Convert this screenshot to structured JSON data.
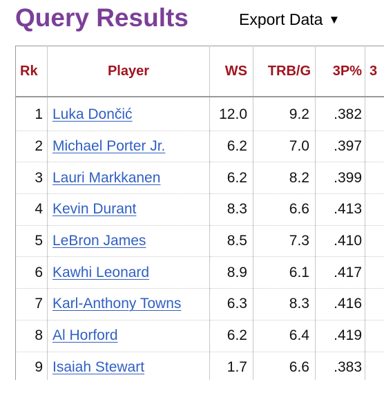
{
  "header": {
    "title": "Query Results",
    "export_label": "Export Data",
    "export_caret": "▼"
  },
  "table": {
    "columns": [
      "Rk",
      "Player",
      "WS",
      "TRB/G",
      "3P%",
      "3"
    ],
    "rows": [
      {
        "rk": "1",
        "player": "Luka Dončić",
        "ws": "12.0",
        "trb": "9.2",
        "p3": ".382"
      },
      {
        "rk": "2",
        "player": "Michael Porter Jr.",
        "ws": "6.2",
        "trb": "7.0",
        "p3": ".397"
      },
      {
        "rk": "3",
        "player": "Lauri Markkanen",
        "ws": "6.2",
        "trb": "8.2",
        "p3": ".399"
      },
      {
        "rk": "4",
        "player": "Kevin Durant",
        "ws": "8.3",
        "trb": "6.6",
        "p3": ".413"
      },
      {
        "rk": "5",
        "player": "LeBron James",
        "ws": "8.5",
        "trb": "7.3",
        "p3": ".410"
      },
      {
        "rk": "6",
        "player": "Kawhi Leonard",
        "ws": "8.9",
        "trb": "6.1",
        "p3": ".417"
      },
      {
        "rk": "7",
        "player": "Karl-Anthony Towns",
        "ws": "6.3",
        "trb": "8.3",
        "p3": ".416"
      },
      {
        "rk": "8",
        "player": "Al Horford",
        "ws": "6.2",
        "trb": "6.4",
        "p3": ".419"
      },
      {
        "rk": "9",
        "player": "Isaiah Stewart",
        "ws": "1.7",
        "trb": "6.6",
        "p3": ".383"
      }
    ]
  },
  "colors": {
    "title": "#7b3f98",
    "header_text": "#a0141e",
    "link": "#2f5fc4"
  }
}
